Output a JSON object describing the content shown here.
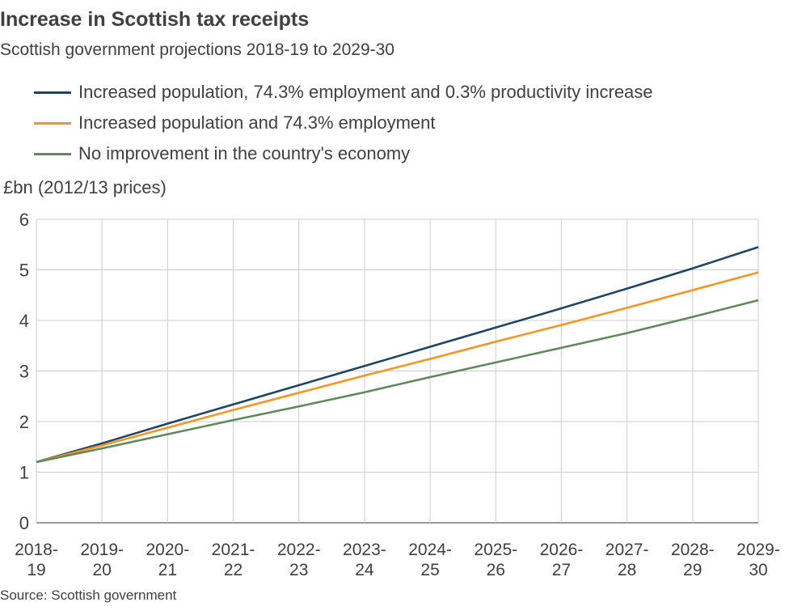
{
  "chart_data": {
    "type": "line",
    "title": "Increase in Scottish tax receipts",
    "subtitle": "Scottish government projections 2018-19 to 2029-30",
    "ylabel": "£bn (2012/13 prices)",
    "xlabel": "",
    "source": "Source: Scottish government",
    "ylim": [
      0,
      6
    ],
    "yticks": [
      "0",
      "1",
      "2",
      "3",
      "4",
      "5",
      "6"
    ],
    "grid": true,
    "legend_position": "top-left",
    "categories": [
      [
        "2018-",
        "19"
      ],
      [
        "2019-",
        "20"
      ],
      [
        "2020-",
        "21"
      ],
      [
        "2021-",
        "22"
      ],
      [
        "2022-",
        "23"
      ],
      [
        "2023-",
        "24"
      ],
      [
        "2024-",
        "25"
      ],
      [
        "2025-",
        "26"
      ],
      [
        "2026-",
        "27"
      ],
      [
        "2027-",
        "28"
      ],
      [
        "2028-",
        "29"
      ],
      [
        "2029-",
        "30"
      ]
    ],
    "series": [
      {
        "name": "Increased population, 74.3% employment and 0.3% productivity increase",
        "color": "#1d4466",
        "values": [
          1.2,
          1.57,
          1.96,
          2.34,
          2.72,
          3.1,
          3.48,
          3.86,
          4.24,
          4.63,
          5.03,
          5.45
        ]
      },
      {
        "name": "Increased population and 74.3% employment",
        "color": "#f7941e",
        "values": [
          1.2,
          1.53,
          1.88,
          2.23,
          2.57,
          2.91,
          3.24,
          3.58,
          3.91,
          4.25,
          4.6,
          4.95
        ]
      },
      {
        "name": "No improvement in the country's economy",
        "color": "#5e8a5a",
        "values": [
          1.2,
          1.47,
          1.75,
          2.03,
          2.3,
          2.58,
          2.88,
          3.17,
          3.46,
          3.75,
          4.07,
          4.4
        ]
      }
    ]
  }
}
